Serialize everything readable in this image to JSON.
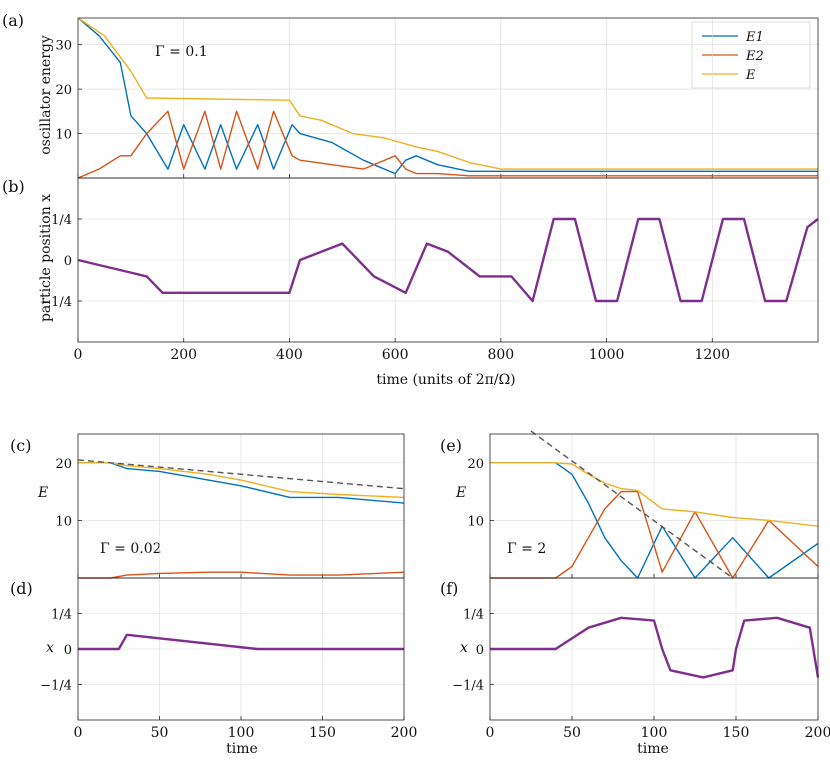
{
  "colors": {
    "E1": "#0072BD",
    "E2": "#D95319",
    "E": "#EDB120",
    "x": "#7E2F8E",
    "dashed": "#555555"
  },
  "chart_data": [
    {
      "panel": "(a)",
      "type": "line",
      "ylabel": "oscillator energy",
      "xlim": [
        0,
        1400
      ],
      "ylim": [
        0,
        36
      ],
      "yticks": [
        {
          "v": 10,
          "label": "10"
        },
        {
          "v": 20,
          "label": "20"
        },
        {
          "v": 30,
          "label": "30"
        }
      ],
      "annotation": "Γ = 0.1",
      "legend": {
        "placement": "top-right",
        "entries": [
          "E1",
          "E2",
          "E"
        ]
      },
      "series": [
        {
          "name": "E1",
          "color_key": "E1",
          "x": [
            0,
            40,
            80,
            100,
            130,
            170,
            200,
            240,
            270,
            300,
            340,
            370,
            405,
            420,
            480,
            540,
            600,
            620,
            640,
            680,
            740,
            800,
            860,
            1000,
            1400
          ],
          "y": [
            36,
            32,
            26,
            14,
            10,
            2,
            12,
            2,
            12,
            2,
            12,
            2,
            12,
            10,
            8,
            4,
            1,
            4,
            5,
            3,
            1.5,
            1.5,
            1.5,
            1.5,
            1.5
          ]
        },
        {
          "name": "E2",
          "color_key": "E2",
          "x": [
            0,
            40,
            80,
            100,
            130,
            170,
            200,
            240,
            270,
            300,
            340,
            370,
            405,
            420,
            480,
            540,
            600,
            620,
            640,
            680,
            740,
            800,
            860,
            1000,
            1400
          ],
          "y": [
            0,
            2,
            5,
            5,
            10,
            15,
            2,
            15,
            2,
            15,
            2,
            15,
            5,
            4,
            3,
            2,
            5,
            2,
            1,
            1,
            0.5,
            0.5,
            0.5,
            0.5,
            0.5
          ]
        },
        {
          "name": "E",
          "color_key": "E",
          "x": [
            0,
            50,
            100,
            130,
            400,
            420,
            460,
            520,
            580,
            640,
            680,
            740,
            800,
            860,
            1000,
            1400
          ],
          "y": [
            36,
            32,
            24,
            18,
            17.5,
            14,
            13,
            10,
            9,
            7,
            6,
            3.5,
            2,
            2,
            2,
            2
          ]
        }
      ]
    },
    {
      "panel": "(b)",
      "type": "line",
      "xlabel": "time (units of 2π/Ω)",
      "ylabel": "particle position x",
      "xlim": [
        0,
        1400
      ],
      "ylim": [
        -0.5,
        0.5
      ],
      "xticks": [
        0,
        200,
        400,
        600,
        800,
        1000,
        1200
      ],
      "yticks": [
        {
          "v": 0.25,
          "label": "1/4"
        },
        {
          "v": 0,
          "label": "0"
        },
        {
          "v": -0.25,
          "label": "−1/4"
        }
      ],
      "series": [
        {
          "name": "x",
          "color_key": "x",
          "x": [
            0,
            130,
            160,
            200,
            250,
            300,
            350,
            400,
            420,
            500,
            560,
            620,
            660,
            700,
            760,
            820,
            860,
            900,
            940,
            980,
            1020,
            1060,
            1100,
            1140,
            1180,
            1220,
            1260,
            1300,
            1340,
            1380,
            1400
          ],
          "y": [
            0,
            -0.1,
            -0.2,
            -0.2,
            -0.2,
            -0.2,
            -0.2,
            -0.2,
            0,
            0.1,
            -0.1,
            -0.2,
            0.1,
            0.05,
            -0.1,
            -0.1,
            -0.25,
            0.25,
            0.25,
            -0.25,
            -0.25,
            0.25,
            0.25,
            -0.25,
            -0.25,
            0.25,
            0.25,
            -0.25,
            -0.25,
            0.2,
            0.25
          ]
        }
      ]
    },
    {
      "panel": "(c)",
      "type": "line",
      "ylabel": "E",
      "xlim": [
        0,
        200
      ],
      "ylim": [
        0,
        25
      ],
      "yticks": [
        {
          "v": 10,
          "label": "10"
        },
        {
          "v": 20,
          "label": "20"
        }
      ],
      "annotation": "Γ = 0.02",
      "series": [
        {
          "name": "E1",
          "color_key": "E1",
          "x": [
            0,
            20,
            30,
            50,
            80,
            100,
            130,
            160,
            200
          ],
          "y": [
            20,
            20,
            19,
            18.5,
            17,
            16,
            14,
            14,
            13
          ]
        },
        {
          "name": "E2",
          "color_key": "E2",
          "x": [
            0,
            20,
            30,
            50,
            80,
            100,
            130,
            160,
            200
          ],
          "y": [
            0,
            0,
            0.5,
            0.8,
            1,
            1,
            0.5,
            0.5,
            1
          ]
        },
        {
          "name": "E",
          "color_key": "E",
          "x": [
            0,
            20,
            30,
            50,
            80,
            100,
            130,
            160,
            200
          ],
          "y": [
            20,
            20,
            19.5,
            19,
            18,
            17,
            15,
            14.5,
            14
          ]
        },
        {
          "name": "decay-guide",
          "color_key": "dashed",
          "dashed": true,
          "x": [
            0,
            200
          ],
          "y": [
            20.5,
            15.5
          ]
        }
      ]
    },
    {
      "panel": "(d)",
      "type": "line",
      "xlabel": "time",
      "ylabel": "x",
      "xlim": [
        0,
        200
      ],
      "ylim": [
        -0.5,
        0.5
      ],
      "xticks": [
        0,
        50,
        100,
        150,
        200
      ],
      "yticks": [
        {
          "v": 0.25,
          "label": "1/4"
        },
        {
          "v": 0,
          "label": "0"
        },
        {
          "v": -0.25,
          "label": "−1/4"
        }
      ],
      "series": [
        {
          "name": "x",
          "color_key": "x",
          "x": [
            0,
            25,
            30,
            110,
            135,
            200
          ],
          "y": [
            0,
            0,
            0.1,
            0,
            0,
            0
          ]
        }
      ]
    },
    {
      "panel": "(e)",
      "type": "line",
      "ylabel": "E",
      "xlim": [
        0,
        200
      ],
      "ylim": [
        0,
        25
      ],
      "yticks": [
        {
          "v": 10,
          "label": "10"
        },
        {
          "v": 20,
          "label": "20"
        }
      ],
      "annotation": "Γ = 2",
      "series": [
        {
          "name": "E1",
          "color_key": "E1",
          "x": [
            0,
            40,
            50,
            60,
            70,
            80,
            90,
            105,
            125,
            148,
            170,
            200
          ],
          "y": [
            20,
            20,
            18,
            13,
            7,
            3,
            0,
            9,
            0,
            7,
            0,
            6
          ]
        },
        {
          "name": "E2",
          "color_key": "E2",
          "x": [
            0,
            40,
            50,
            60,
            70,
            80,
            90,
            105,
            125,
            148,
            170,
            200
          ],
          "y": [
            0,
            0,
            2,
            7,
            12,
            15,
            15,
            1,
            11.5,
            0,
            10,
            2
          ]
        },
        {
          "name": "E",
          "color_key": "E",
          "x": [
            0,
            40,
            50,
            60,
            70,
            80,
            90,
            105,
            125,
            148,
            170,
            200
          ],
          "y": [
            20,
            20,
            19.8,
            18,
            16.5,
            15.5,
            15.2,
            12,
            11.5,
            10.5,
            10,
            9
          ]
        },
        {
          "name": "decay-guide",
          "color_key": "dashed",
          "dashed": true,
          "x": [
            25,
            148
          ],
          "y": [
            25.5,
            0
          ]
        }
      ]
    },
    {
      "panel": "(f)",
      "type": "line",
      "xlabel": "time",
      "ylabel": "x",
      "xlim": [
        0,
        200
      ],
      "ylim": [
        -0.5,
        0.5
      ],
      "xticks": [
        0,
        50,
        100,
        150,
        200
      ],
      "yticks": [
        {
          "v": 0.25,
          "label": "1/4"
        },
        {
          "v": 0,
          "label": "0"
        },
        {
          "v": -0.25,
          "label": "−1/4"
        }
      ],
      "series": [
        {
          "name": "x",
          "color_key": "x",
          "x": [
            0,
            40,
            60,
            80,
            100,
            105,
            110,
            130,
            148,
            150,
            155,
            175,
            195,
            200
          ],
          "y": [
            0,
            0,
            0.15,
            0.22,
            0.2,
            0,
            -0.15,
            -0.2,
            -0.15,
            0,
            0.2,
            0.22,
            0.15,
            -0.2
          ]
        }
      ]
    }
  ]
}
